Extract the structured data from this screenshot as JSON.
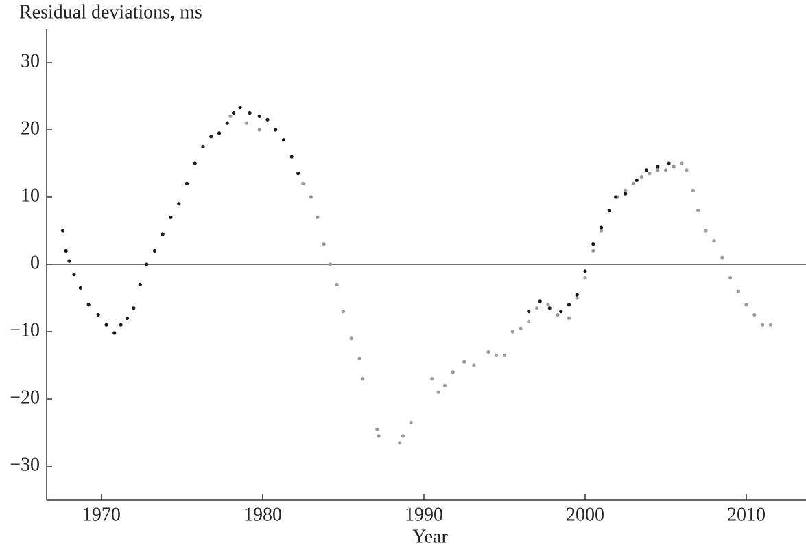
{
  "chart_data": {
    "type": "scatter",
    "ylabel": "Residual deviations, ms",
    "xlabel": "Year",
    "xlim": [
      1966.6,
      2013.7
    ],
    "xticks": [
      1970,
      1980,
      1990,
      2000,
      2010
    ],
    "ylim": [
      -35,
      35
    ],
    "yticks": [
      {
        "value": -30,
        "label": "−30"
      },
      {
        "value": -20,
        "label": "−20"
      },
      {
        "value": -10,
        "label": "−10"
      },
      0,
      10,
      20,
      30
    ],
    "hline": 0,
    "series": [
      {
        "color": "#1a1a1a",
        "x": [
          1967.6,
          1967.8,
          1968,
          1968.3,
          1968.7,
          1969.2,
          1969.8,
          1970.3,
          1970.8,
          1971.2,
          1971.6,
          1972,
          1972.4,
          1972.8,
          1973.3,
          1973.8,
          1974.3,
          1974.8,
          1975.3,
          1975.8,
          1976.3,
          1976.8,
          1977.3,
          1977.8,
          1978.2,
          1978.6,
          1979.2,
          1979.8,
          1980.3,
          1980.8,
          1981.3,
          1981.8,
          1982.2,
          1996.5,
          1997.2,
          1997.8,
          1998.5,
          1999,
          1999.5,
          2000,
          2000.5,
          2001,
          2001.5,
          2001.9,
          2002.5,
          2003.2,
          2003.8,
          2004.5,
          2005.2
        ],
        "values": [
          5,
          2,
          0.5,
          -1.5,
          -3.5,
          -6,
          -7.5,
          -9,
          -10.2,
          -9,
          -8,
          -6.5,
          -3,
          0,
          2,
          4.5,
          7,
          9,
          12,
          15,
          17.5,
          19,
          19.5,
          21,
          22.5,
          23.3,
          22.5,
          22,
          21.5,
          20,
          18.5,
          16,
          13.5,
          -7,
          -5.5,
          -6.5,
          -7,
          -6,
          -4.5,
          -1,
          3,
          5.5,
          8,
          10,
          10.5,
          12.5,
          14,
          14.5,
          15
        ]
      },
      {
        "color": "#9a9a9a",
        "x": [
          1978,
          1979,
          1979.8,
          1982.5,
          1983,
          1983.4,
          1983.8,
          1984.2,
          1984.6,
          1985,
          1985.5,
          1986,
          1986.2,
          1987.1,
          1987.2,
          1988.5,
          1988.7,
          1989.2,
          1990.5,
          1990.9,
          1991.3,
          1991.8,
          1992.5,
          1993.1,
          1994,
          1994.5,
          1995,
          1995.5,
          1996,
          1996.5,
          1997,
          1997.7,
          1998.3,
          1999,
          1999.5,
          2000,
          2000.5,
          2001,
          2001.5,
          2002,
          2002.5,
          2003,
          2003.5,
          2004,
          2004.5,
          2005,
          2005.5,
          2006,
          2006.3,
          2006.7,
          2007,
          2007.5,
          2008,
          2008.5,
          2009,
          2009.5,
          2010,
          2010.5,
          2011,
          2011.5
        ],
        "values": [
          22,
          21,
          20,
          12,
          10,
          7,
          3,
          0,
          -3,
          -7,
          -11,
          -14,
          -17,
          -24.5,
          -25.5,
          -26.5,
          -25.5,
          -23.5,
          -17,
          -19,
          -18,
          -16,
          -14.5,
          -15,
          -13,
          -13.5,
          -13.5,
          -10,
          -9.5,
          -8.5,
          -6.5,
          -6,
          -7.5,
          -8,
          -5,
          -2,
          2,
          5,
          8,
          10,
          11,
          12,
          13,
          13.5,
          14,
          14,
          14.5,
          15,
          14,
          11,
          8,
          5,
          3.5,
          1,
          -2,
          -4,
          -6,
          -7.5,
          -9,
          -9
        ]
      }
    ]
  }
}
